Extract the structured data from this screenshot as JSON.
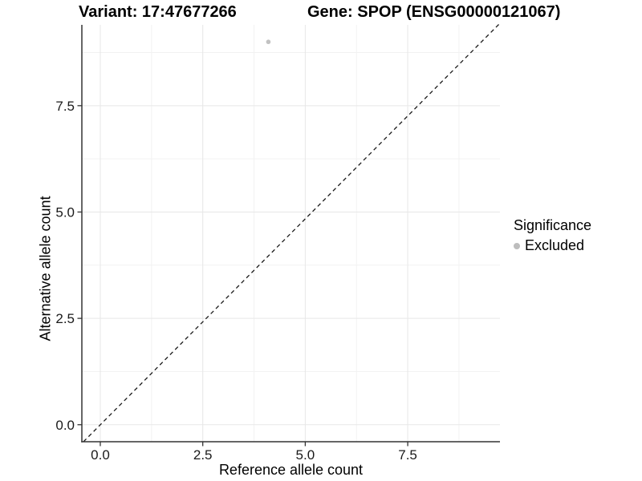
{
  "titles": {
    "variant": "Variant: 17:47677266",
    "gene": "Gene: SPOP (ENSG00000121067)"
  },
  "legend": {
    "title": "Significance",
    "items": [
      {
        "label": "Excluded",
        "color": "#bdbdbd"
      }
    ]
  },
  "chart_data": {
    "type": "scatter",
    "title": "Variant: 17:47677266   Gene: SPOP (ENSG00000121067)",
    "xlabel": "Reference allele count",
    "ylabel": "Alternative allele count",
    "x_domain": [
      -0.45,
      9.75
    ],
    "y_domain": [
      -0.4,
      9.4
    ],
    "x_ticks": [
      0.0,
      2.5,
      5.0,
      7.5
    ],
    "x_tick_labels": [
      "0.0",
      "2.5",
      "5.0",
      "7.5"
    ],
    "y_ticks": [
      0.0,
      2.5,
      5.0,
      7.5
    ],
    "y_tick_labels": [
      "0.0",
      "2.5",
      "5.0",
      "7.5"
    ],
    "x_minor_ticks": [
      1.25,
      3.75,
      6.25,
      8.75
    ],
    "y_minor_ticks": [
      1.25,
      3.75,
      6.25,
      8.75
    ],
    "grid": true,
    "legend_position": "right",
    "series": [
      {
        "name": "Excluded",
        "color": "#c2c2c2",
        "points": [
          {
            "x": 4.1,
            "y": 9.0
          }
        ]
      }
    ],
    "reference_line": {
      "type": "identity y=x",
      "style": "dashed",
      "color": "#1a1a1a"
    }
  },
  "colors": {
    "point": "#c2c2c2",
    "legend_key": "#bdbdbd",
    "grid_major": "#e7e7e7",
    "grid_minor": "#f2f2f2",
    "axis_line": "#333333",
    "tick_label": "#1a1a1a",
    "dashed_line": "#1a1a1a",
    "background": "#ffffff"
  }
}
